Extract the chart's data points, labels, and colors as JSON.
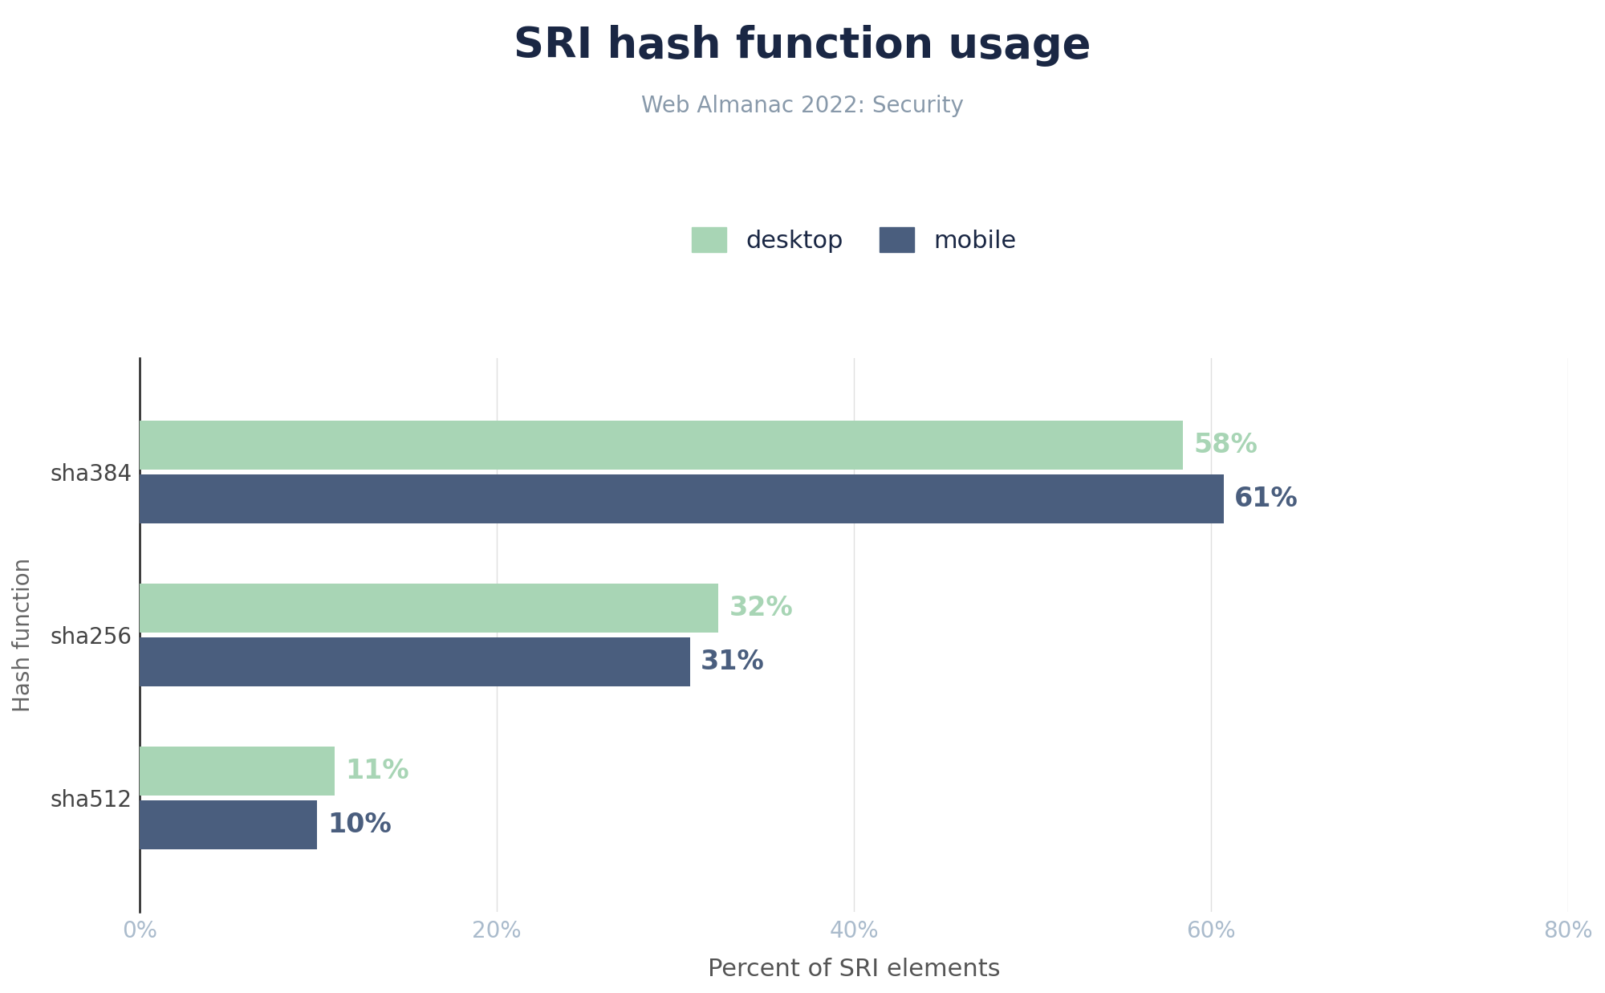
{
  "title": "SRI hash function usage",
  "subtitle": "Web Almanac 2022: Security",
  "categories": [
    "sha512",
    "sha256",
    "sha384"
  ],
  "desktop_values": [
    10.9,
    32.4,
    58.4
  ],
  "mobile_values": [
    9.9,
    30.8,
    60.7
  ],
  "desktop_labels": [
    "11%",
    "32%",
    "58%"
  ],
  "mobile_labels": [
    "10%",
    "31%",
    "61%"
  ],
  "desktop_color": "#a8d5b5",
  "mobile_color": "#4a5e7e",
  "xlabel": "Percent of SRI elements",
  "ylabel": "Hash function",
  "xlim": [
    0,
    80
  ],
  "xticks": [
    0,
    20,
    40,
    60,
    80
  ],
  "xtick_labels": [
    "0%",
    "20%",
    "40%",
    "60%",
    "80%"
  ],
  "background_color": "#ffffff",
  "title_fontsize": 38,
  "subtitle_fontsize": 20,
  "xlabel_fontsize": 22,
  "ylabel_fontsize": 20,
  "tick_fontsize": 20,
  "bar_label_fontsize": 24,
  "legend_fontsize": 22,
  "bar_height": 0.3,
  "bar_gap": 0.03,
  "title_color": "#1a2744",
  "subtitle_color": "#8899aa",
  "ylabel_color": "#666666",
  "xlabel_color": "#555555",
  "xtick_color": "#aabbcc",
  "ytick_color": "#444444",
  "grid_color": "#e0e0e0",
  "spine_color": "#222222"
}
